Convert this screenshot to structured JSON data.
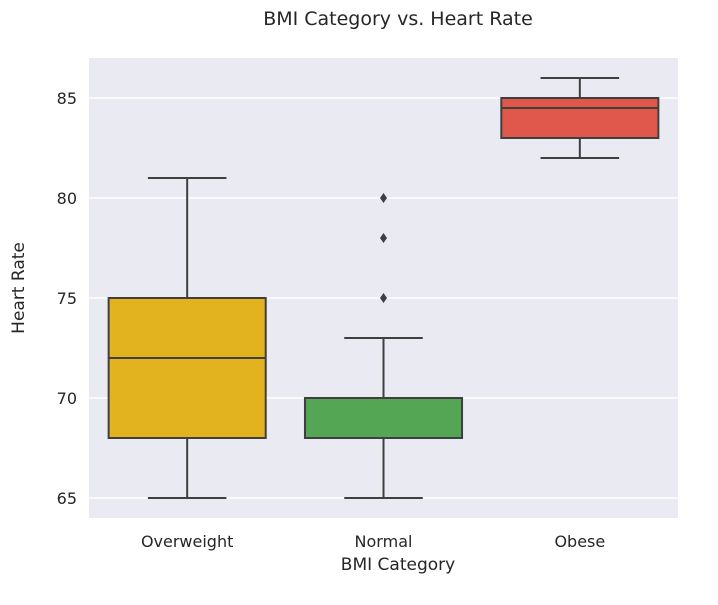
{
  "chart_data": {
    "type": "box",
    "title": "BMI Category vs. Heart Rate",
    "xlabel": "BMI Category",
    "ylabel": "Heart Rate",
    "ylim": [
      64,
      87
    ],
    "yticks": [
      65,
      70,
      75,
      80,
      85
    ],
    "grid": true,
    "categories": [
      "Overweight",
      "Normal",
      "Obese"
    ],
    "boxes": [
      {
        "category": "Overweight",
        "color": "#E3B31F",
        "whisker_low": 65,
        "q1": 68,
        "median": 72,
        "q3": 75,
        "whisker_high": 81,
        "outliers": []
      },
      {
        "category": "Normal",
        "color": "#54A654",
        "whisker_low": 65,
        "q1": 68,
        "median": 68,
        "q3": 70,
        "whisker_high": 73,
        "outliers": [
          75,
          78,
          80
        ]
      },
      {
        "category": "Obese",
        "color": "#E0574B",
        "whisker_low": 82,
        "q1": 83,
        "median": 84.5,
        "q3": 85,
        "whisker_high": 86,
        "outliers": []
      }
    ]
  },
  "colors": {
    "plot_background": "#EAEAF2",
    "gridline": "#FFFFFF",
    "box_edge": "#3F3F3F"
  }
}
